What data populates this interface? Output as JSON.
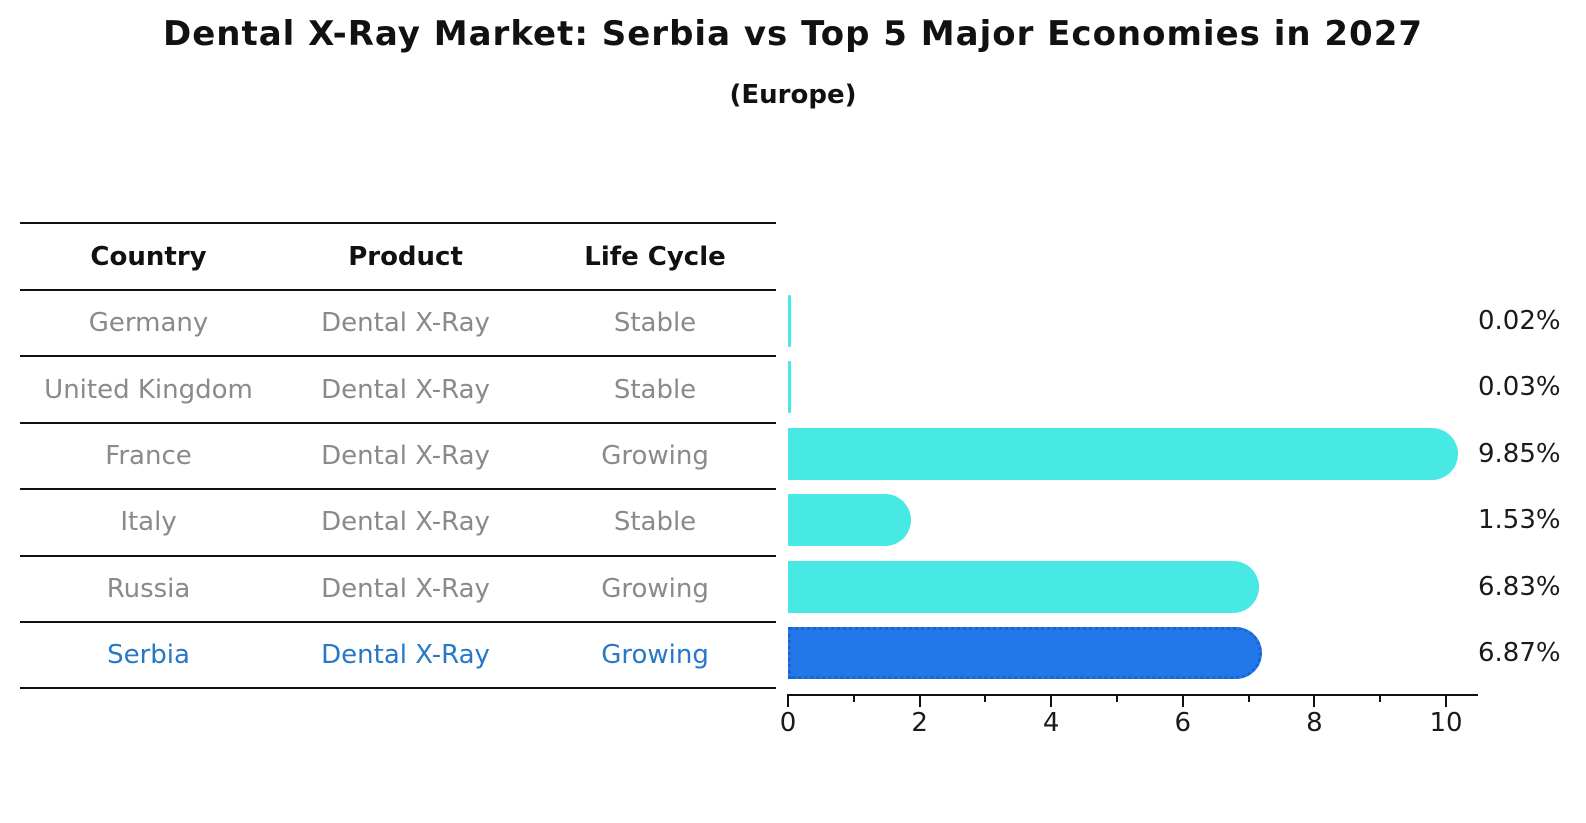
{
  "header": {
    "title": "Dental X-Ray Market: Serbia vs Top 5 Major Economies in 2027",
    "subtitle": "(Europe)"
  },
  "table": {
    "columns": [
      "Country",
      "Product",
      "Life Cycle"
    ],
    "rows": [
      {
        "country": "Germany",
        "product": "Dental X-Ray",
        "life_cycle": "Stable"
      },
      {
        "country": "United Kingdom",
        "product": "Dental X-Ray",
        "life_cycle": "Stable"
      },
      {
        "country": "France",
        "product": "Dental X-Ray",
        "life_cycle": "Growing"
      },
      {
        "country": "Italy",
        "product": "Dental X-Ray",
        "life_cycle": "Stable"
      },
      {
        "country": "Russia",
        "product": "Dental X-Ray",
        "life_cycle": "Growing"
      },
      {
        "country": "Serbia",
        "product": "Dental X-Ray",
        "life_cycle": "Growing"
      }
    ]
  },
  "chart_data": {
    "type": "bar",
    "orientation": "horizontal",
    "title": "Dental X-Ray Market: Serbia vs Top 5 Major Economies in 2027",
    "subtitle": "(Europe)",
    "categories": [
      "Germany",
      "United Kingdom",
      "France",
      "Italy",
      "Russia",
      "Serbia"
    ],
    "values": [
      0.02,
      0.03,
      9.85,
      1.53,
      6.83,
      6.87
    ],
    "value_labels": [
      "0.02%",
      "0.03%",
      "9.85%",
      "1.53%",
      "6.83%",
      "6.87%"
    ],
    "life_cycle": [
      "Stable",
      "Stable",
      "Growing",
      "Stable",
      "Growing",
      "Growing"
    ],
    "x_ticks": [
      0,
      2,
      4,
      6,
      8,
      10
    ],
    "x_minor_ticks": [
      1,
      3,
      5,
      7,
      9
    ],
    "xlim": [
      0,
      10.4
    ],
    "grid": false,
    "legend": false,
    "bar_color": "#48e8e4",
    "highlight_color": "#2278e8",
    "highlight_index": 5,
    "highlight_text_color": "#2878c8",
    "table_text_color": "#8a8a8a"
  }
}
